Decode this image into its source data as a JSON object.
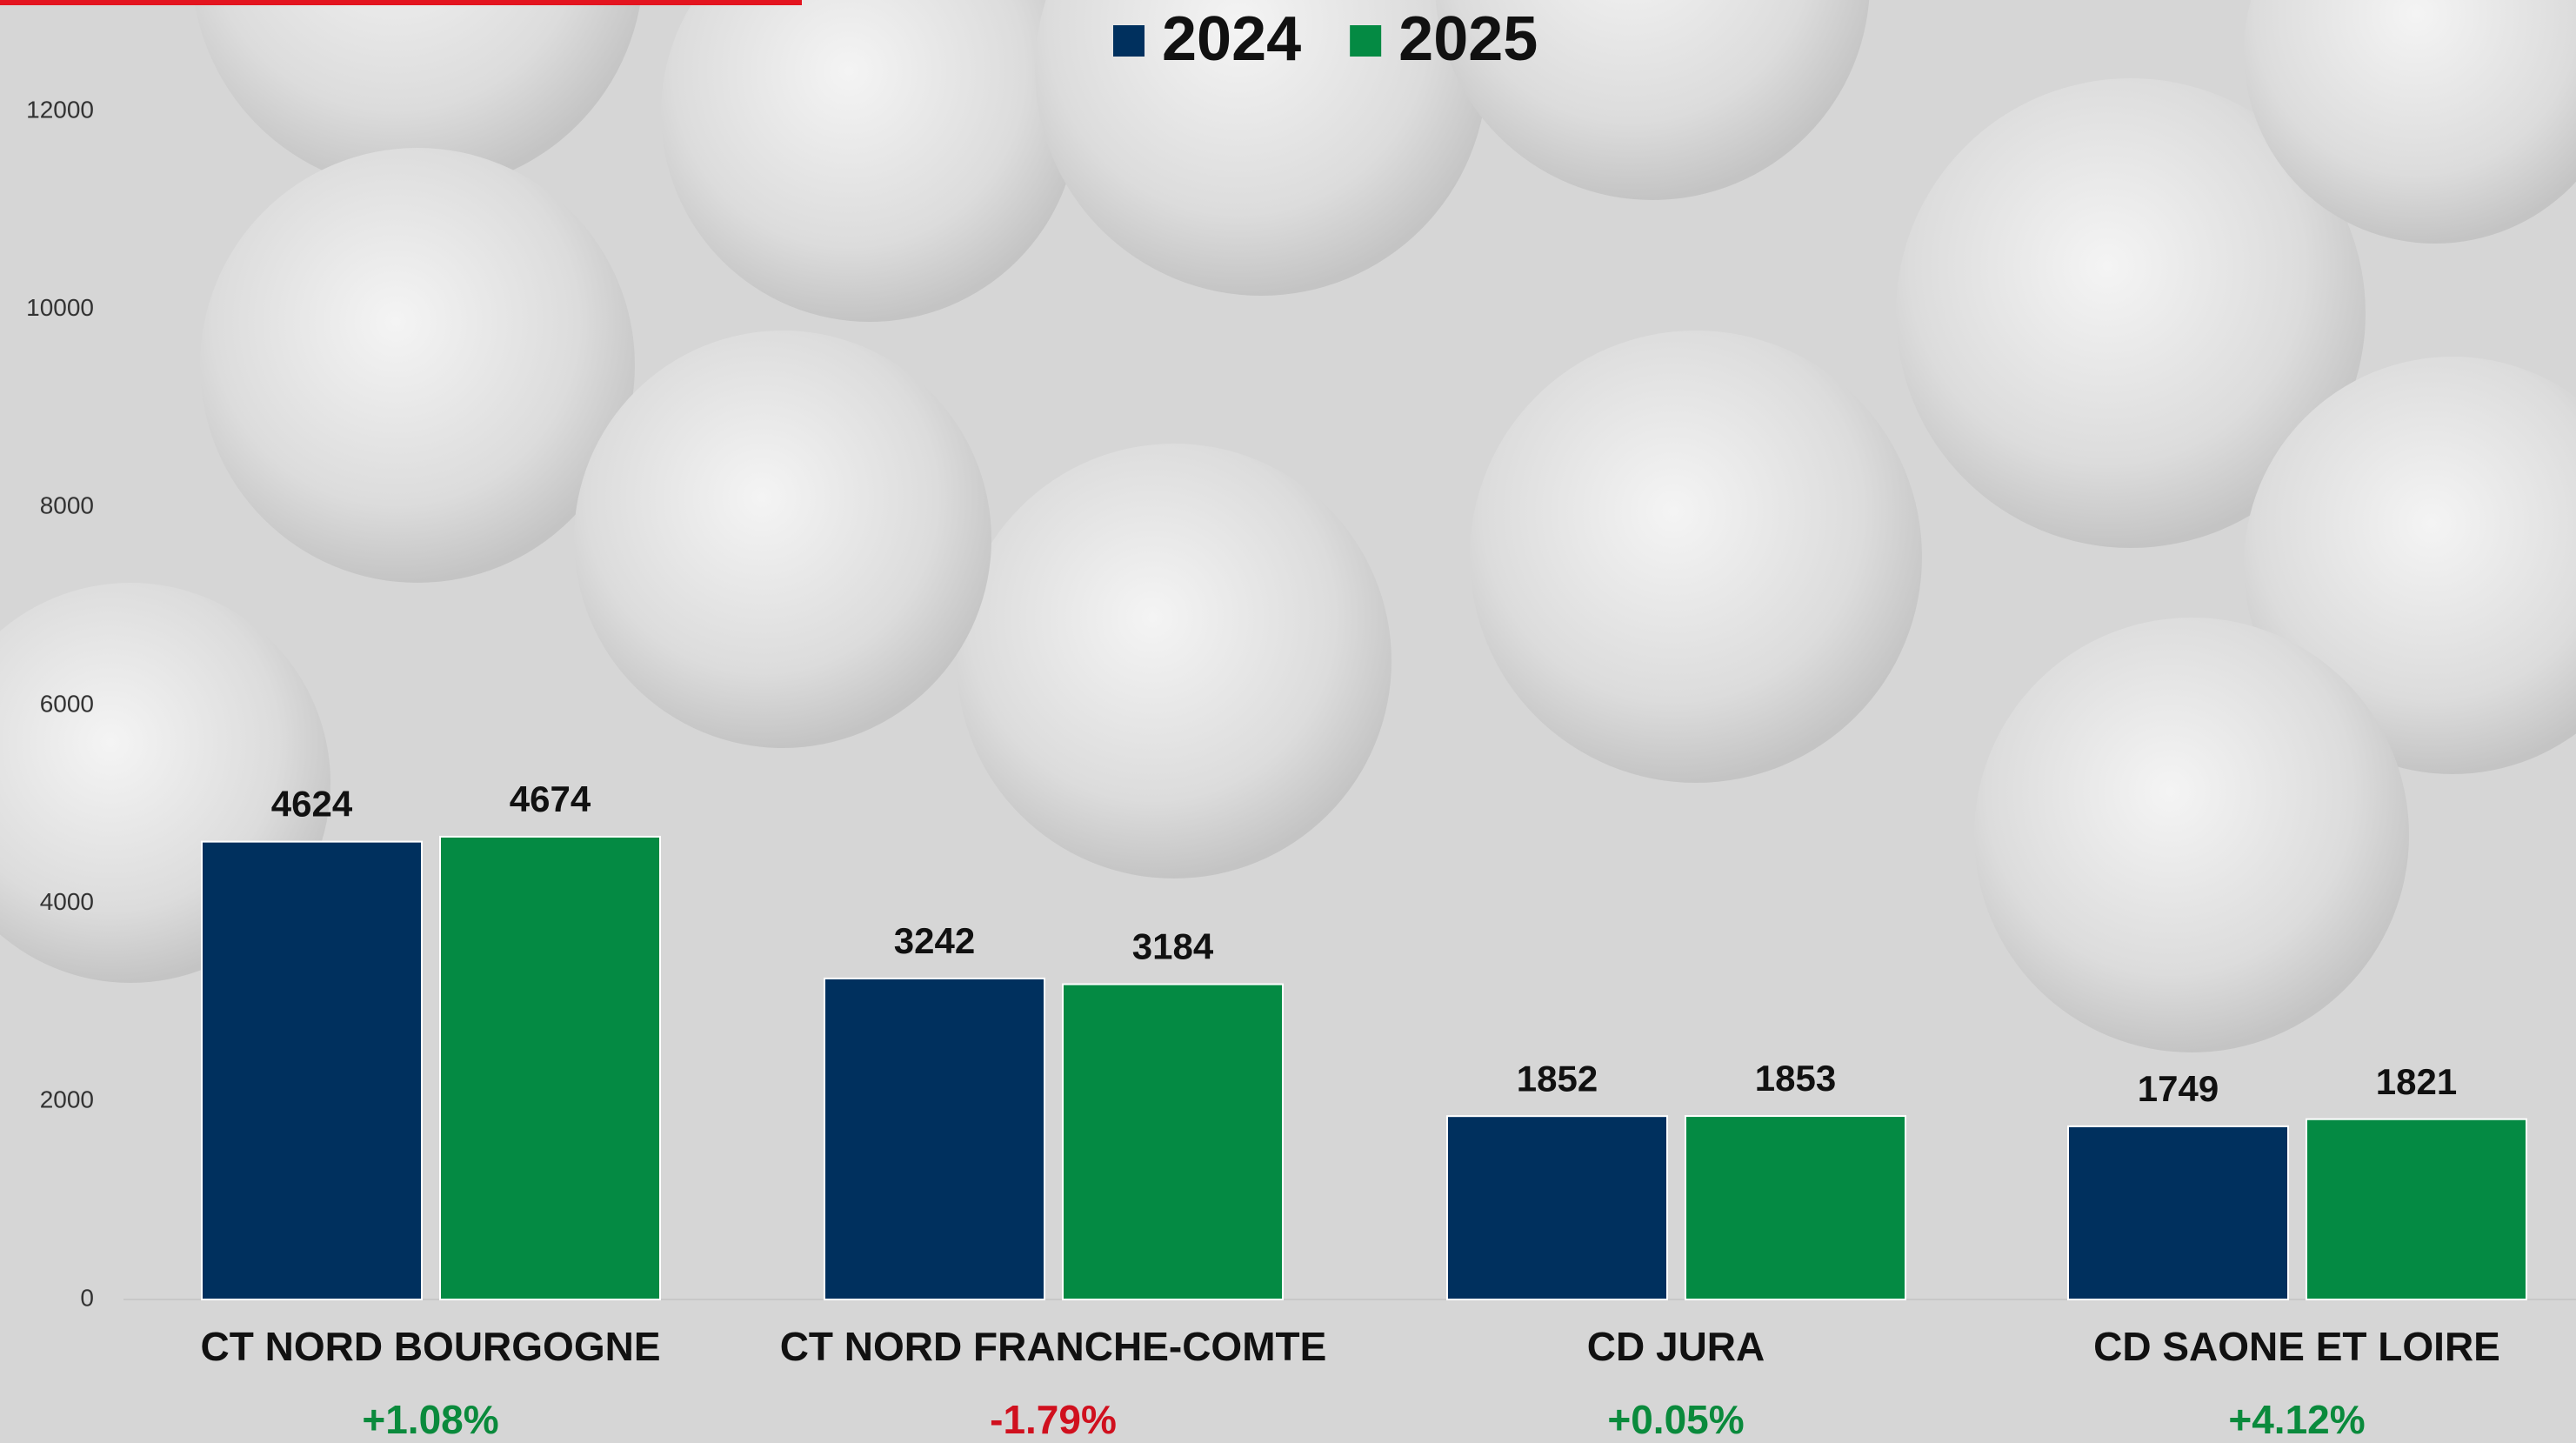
{
  "chart_data": {
    "type": "bar",
    "categories": [
      "CT NORD BOURGOGNE",
      "CT NORD FRANCHE-COMTE",
      "CD JURA",
      "CD SAONE ET LOIRE"
    ],
    "series": [
      {
        "name": "2024",
        "color": "#00305e",
        "values": [
          4624,
          3242,
          1852,
          1749
        ]
      },
      {
        "name": "2025",
        "color": "#048a43",
        "values": [
          4674,
          3184,
          1853,
          1821
        ]
      }
    ],
    "change_labels": [
      "+1.08%",
      "-1.79%",
      "+0.05%",
      "+4.12%"
    ],
    "change_colors": [
      "#0a8a3c",
      "#d0101e",
      "#0a8a3c",
      "#0a8a3c"
    ],
    "ylim": [
      0,
      12000
    ],
    "yticks": [
      0,
      2000,
      4000,
      6000,
      8000,
      10000,
      12000
    ],
    "grid": false,
    "legend": "top"
  }
}
